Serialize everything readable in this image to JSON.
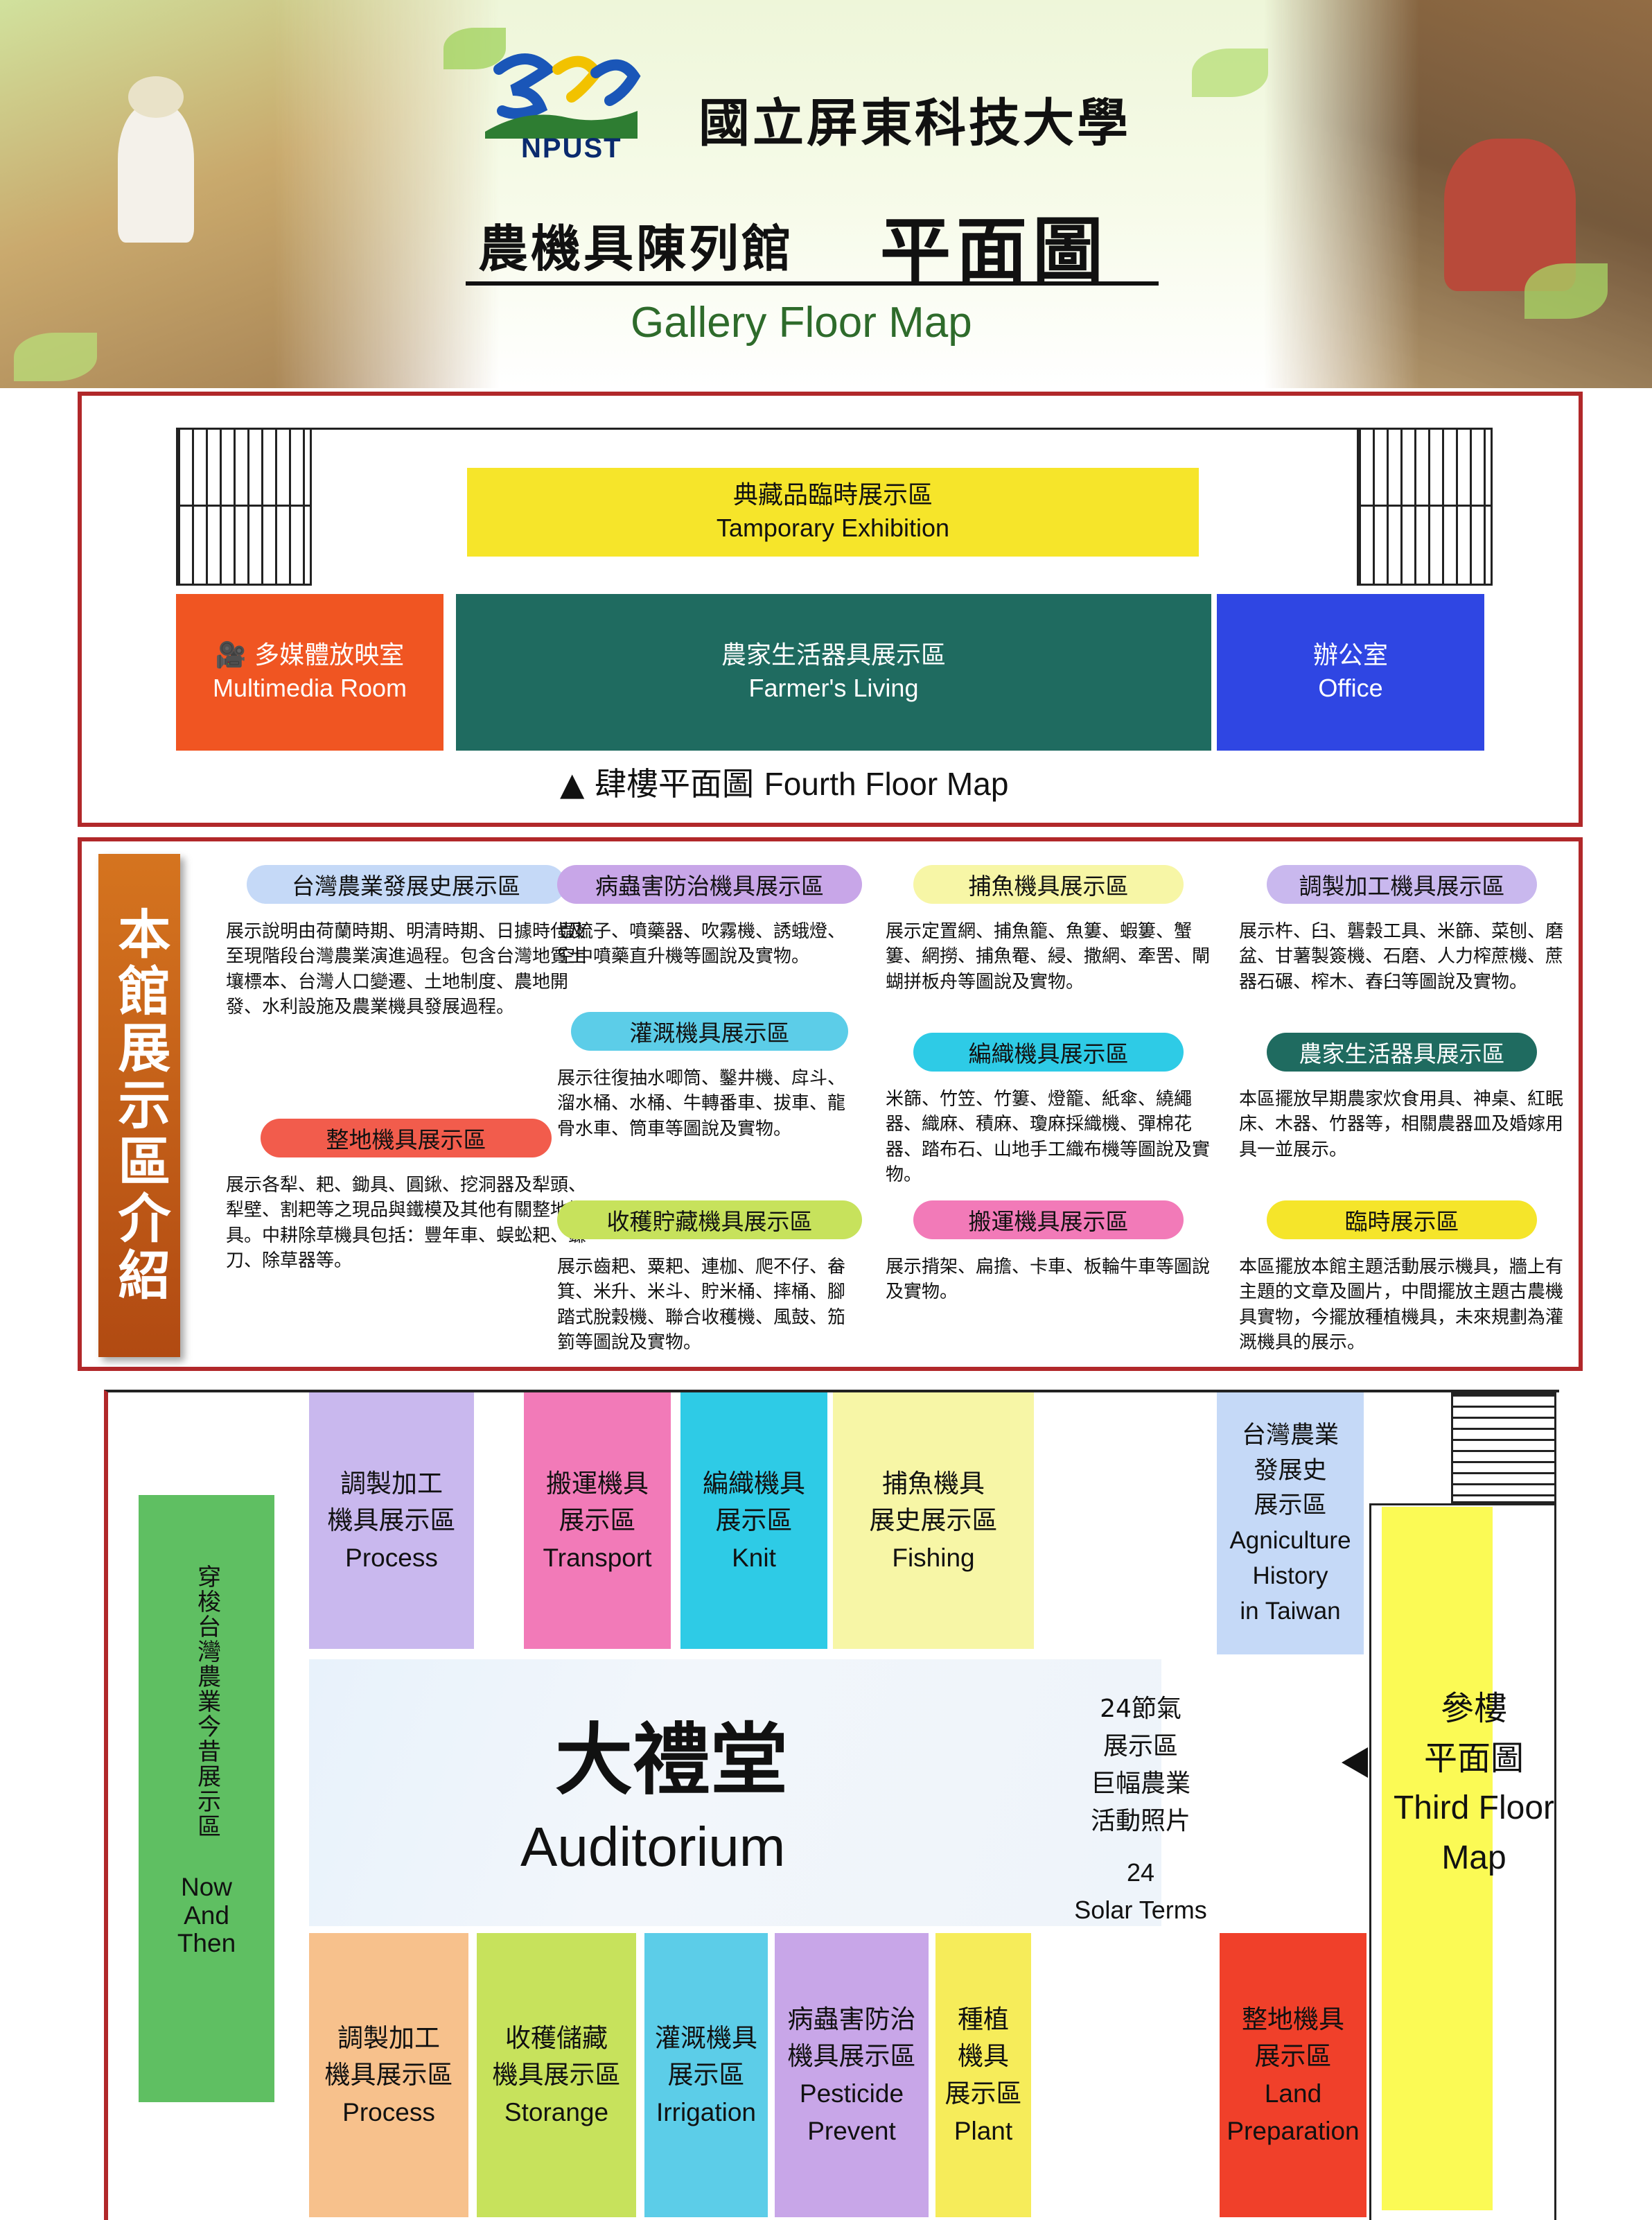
{
  "header": {
    "logo_text": "NPUST",
    "university": "國立屏東科技大學",
    "title_cn": "農機具陳列館",
    "title_big": "平面圖",
    "title_en": "Gallery Floor Map"
  },
  "fourth_floor": {
    "temporary": {
      "cn": "典藏品臨時展示區",
      "en": "Tamporary Exhibition"
    },
    "multimedia": {
      "cn": "多媒體放映室",
      "en": "Multimedia Room"
    },
    "farmers_living": {
      "cn": "農家生活器具展示區",
      "en": "Farmer's Living"
    },
    "office": {
      "cn": "辦公室",
      "en": "Office"
    },
    "caption_cn": "▲ 肆樓平面圖",
    "caption_en": "Fourth Floor Map"
  },
  "intro": {
    "ribbon": "本館展示區介紹",
    "zones": [
      {
        "title": "台灣農業發展史展示區",
        "color": "#c5d9f7",
        "text": "展示說明由荷蘭時期、明清時期、日據時代及至現階段台灣農業演進過程。包含台灣地質土壤標本、台灣人口變遷、土地制度、農地開發、水利設施及農業機具發展過程。"
      },
      {
        "title": "整地機具展示區",
        "color": "#f25c4c",
        "text": "展示各犁、耙、鋤具、圓鍬、挖洞器及犁頭、犁壁、割耙等之現品與鐵模及其他有關整地機具。中耕除草機具包括：豐年車、蜈蚣耙、鐮刀、除草器等。"
      },
      {
        "title": "病蟲害防治機具展示區",
        "color": "#c8a6e8",
        "text": "蟲梳子、噴藥器、吹霧機、誘蛾燈、空中噴藥直升機等圖說及實物。"
      },
      {
        "title": "灌溉機具展示區",
        "color": "#5ccde8",
        "text": "展示往復抽水唧筒、鑿井機、戽斗、溜水桶、水桶、牛轉番車、拔車、龍骨水車、筒車等圖說及實物。"
      },
      {
        "title": "收穫貯藏機具展示區",
        "color": "#c7e25c",
        "text": "展示齒耙、粟耙、連枷、爬不仔、畚箕、米升、米斗、貯米桶、摔桶、腳踏式脫穀機、聯合收穫機、風鼓、笳箌等圖說及實物。"
      },
      {
        "title": "捕魚機具展示區",
        "color": "#f7f6a6",
        "text": "展示定置網、捕魚籠、魚簍、蝦簍、蟹簍、網撈、捕魚罨、綅、撒網、牽罟、閘蝴拼板舟等圖說及實物。"
      },
      {
        "title": "編織機具展示區",
        "color": "#2ecbe6",
        "text": "米篩、竹笠、竹簍、燈籠、紙傘、繞繩器、織麻、積麻、瓊麻採織機、彈棉花器、踏布石、山地手工織布機等圖說及實物。"
      },
      {
        "title": "搬運機具展示區",
        "color": "#f27ab8",
        "text": "展示揹架、扁擔、卡車、板輪牛車等圖說及實物。"
      },
      {
        "title": "調製加工機具展示區",
        "color": "#c9b8ee",
        "text": "展示杵、臼、礱穀工具、米篩、菜刨、磨盆、甘薯製簽機、石磨、人力榨蔗機、蔗器石碾、榨木、舂臼等圖說及實物。"
      },
      {
        "title": "農家生活器具展示區",
        "color": "#1f6b60",
        "text": "本區擺放早期農家炊食用具、神桌、紅眠床、木器、竹器等，相關農器皿及婚嫁用具一並展示。"
      },
      {
        "title": "臨時展示區",
        "color": "#f5e52a",
        "text": "本區擺放本館主題活動展示機具，牆上有主題的文章及圖片，中間擺放主題古農機具實物，今擺放種植機具，未來規劃為灌溉機具的展示。"
      }
    ]
  },
  "third_floor": {
    "now_then": {
      "cn": "穿梭台灣農業今昔展示區",
      "en": "Now And Then"
    },
    "top": [
      {
        "cn1": "調製加工",
        "cn2": "機具展示區",
        "en": "Process"
      },
      {
        "cn1": "搬運機具",
        "cn2": "展示區",
        "en": "Transport"
      },
      {
        "cn1": "編織機具",
        "cn2": "展示區",
        "en": "Knit"
      },
      {
        "cn1": "捕魚機具",
        "cn2": "展史展示區",
        "en": "Fishing"
      }
    ],
    "history": {
      "cn1": "台灣農業",
      "cn2": "發展史",
      "cn3": "展示區",
      "en1": "Agniculture",
      "en2": "History",
      "en3": "in Taiwan"
    },
    "auditorium": {
      "cn": "大禮堂",
      "en": "Auditorium"
    },
    "solar": {
      "cn1": "24節氣",
      "cn2": "展示區",
      "cn3": "巨幅農業",
      "cn4": "活動照片",
      "en1": "24",
      "en2": "Solar Terms"
    },
    "third_map": {
      "cn1": "參樓",
      "cn2": "平面圖",
      "en1": "Third Floor",
      "en2": "Map"
    },
    "bottom": [
      {
        "cn1": "調製加工",
        "cn2": "機具展示區",
        "en": "Process"
      },
      {
        "cn1": "收穫儲藏",
        "cn2": "機具展示區",
        "en": "Storange"
      },
      {
        "cn1": "灌溉機具",
        "cn2": "展示區",
        "en": "Irrigation"
      },
      {
        "cn1": "病蟲害防治",
        "cn2": "機具展示區",
        "en1": "Pesticide",
        "en2": "Prevent"
      },
      {
        "cn1": "種植",
        "cn2": "機具",
        "cn3": "展示區",
        "en": "Plant"
      }
    ],
    "land": {
      "cn1": "整地機具",
      "cn2": "展示區",
      "en1": "Land",
      "en2": "Preparation"
    }
  }
}
